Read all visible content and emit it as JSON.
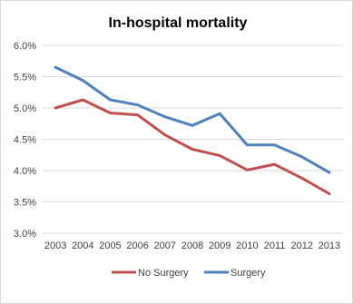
{
  "chart_data": {
    "type": "line",
    "title": "In-hospital mortality",
    "xlabel": "",
    "ylabel": "",
    "categories": [
      "2003",
      "2004",
      "2005",
      "2006",
      "2007",
      "2008",
      "2009",
      "2010",
      "2011",
      "2012",
      "2013"
    ],
    "ylim": [
      3.0,
      6.0
    ],
    "yticks": [
      3.0,
      3.5,
      4.0,
      4.5,
      5.0,
      5.5,
      6.0
    ],
    "ytick_labels": [
      "3.0%",
      "3.5%",
      "4.0%",
      "4.5%",
      "5.0%",
      "5.5%",
      "6.0%"
    ],
    "grid": true,
    "legend_position": "bottom",
    "series": [
      {
        "name": "No Surgery",
        "color": "#c0504d",
        "values": [
          5.0,
          5.13,
          4.92,
          4.89,
          4.57,
          4.34,
          4.24,
          4.01,
          4.1,
          3.88,
          3.63
        ]
      },
      {
        "name": "Surgery",
        "color": "#4f81bd",
        "values": [
          5.65,
          5.44,
          5.13,
          5.05,
          4.86,
          4.72,
          4.91,
          4.41,
          4.41,
          4.22,
          3.97
        ]
      }
    ]
  }
}
